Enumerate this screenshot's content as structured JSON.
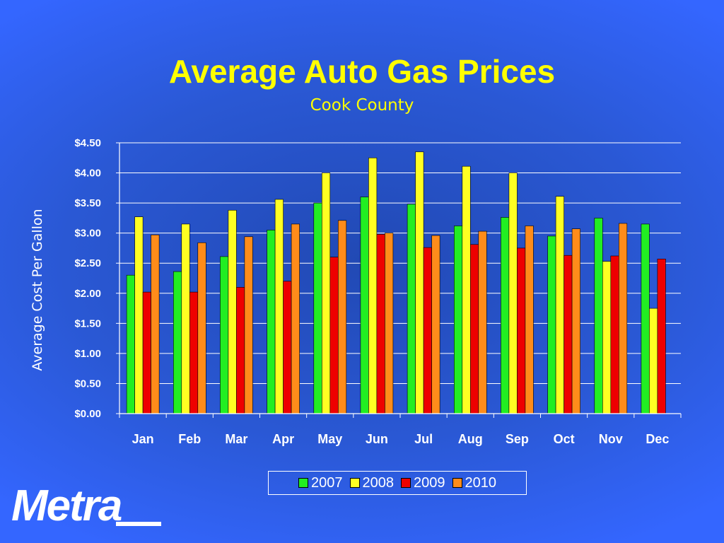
{
  "slide": {
    "title": "Average Auto Gas Prices",
    "subtitle": "Cook County",
    "logo_text": "Metra"
  },
  "colors": {
    "2007": "#22ee22",
    "2008": "#ffff22",
    "2009": "#ee0000",
    "2010": "#ff8c1a",
    "grid": "#ffffff",
    "text": "#ffffff",
    "title": "#ffff00"
  },
  "chart_data": {
    "type": "bar",
    "title": "Average Auto Gas Prices",
    "subtitle": "Cook County",
    "xlabel": "",
    "ylabel": "Average Cost Per Gallon",
    "ylim": [
      0,
      4.5
    ],
    "y_ticks": [
      "$0.00",
      "$0.50",
      "$1.00",
      "$1.50",
      "$2.00",
      "$2.50",
      "$3.00",
      "$3.50",
      "$4.00",
      "$4.50"
    ],
    "grid": true,
    "legend_position": "bottom",
    "categories": [
      "Jan",
      "Feb",
      "Mar",
      "Apr",
      "May",
      "Jun",
      "Jul",
      "Aug",
      "Sep",
      "Oct",
      "Nov",
      "Dec"
    ],
    "series": [
      {
        "name": "2007",
        "values": [
          2.3,
          2.36,
          2.61,
          3.05,
          3.5,
          3.6,
          3.48,
          3.12,
          3.26,
          2.95,
          3.25,
          3.15
        ]
      },
      {
        "name": "2008",
        "values": [
          3.27,
          3.15,
          3.38,
          3.56,
          4.0,
          4.25,
          4.35,
          4.11,
          4.0,
          3.61,
          2.53,
          1.75
        ]
      },
      {
        "name": "2009",
        "values": [
          2.02,
          2.02,
          2.1,
          2.2,
          2.6,
          2.98,
          2.76,
          2.81,
          2.75,
          2.63,
          2.62,
          2.57
        ]
      },
      {
        "name": "2010",
        "values": [
          2.97,
          2.84,
          2.94,
          3.15,
          3.21,
          3.0,
          2.96,
          3.03,
          3.12,
          3.07,
          3.16,
          null
        ]
      }
    ]
  }
}
